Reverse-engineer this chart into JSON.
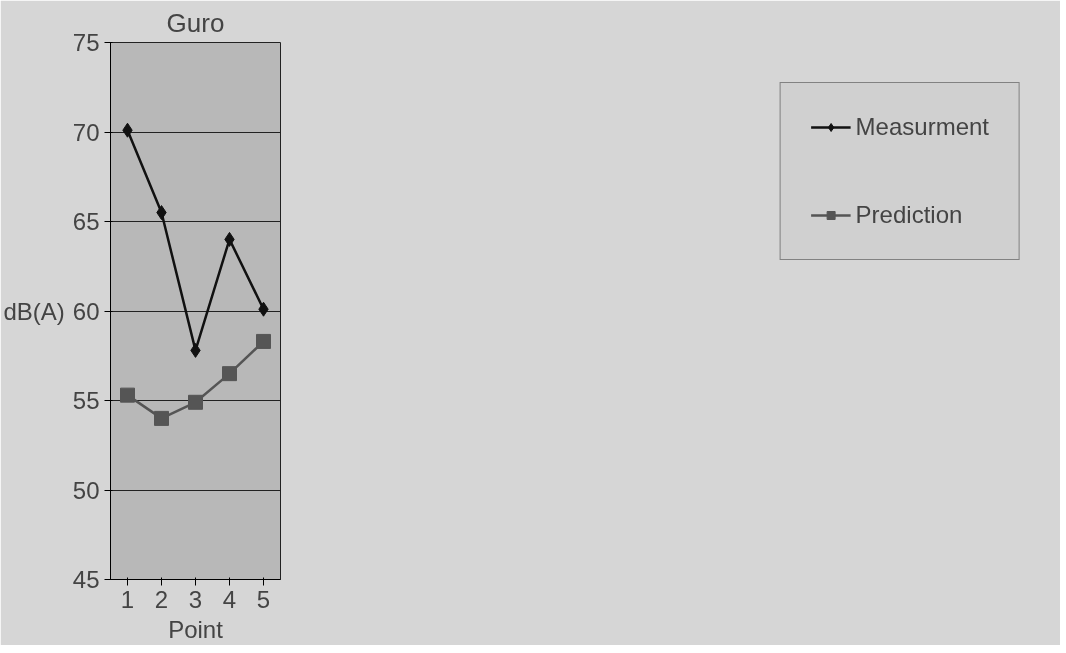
{
  "chart_data": {
    "type": "line",
    "title": "Guro",
    "xlabel": "Point",
    "ylabel": "dB(A)",
    "categories": [
      "1",
      "2",
      "3",
      "4",
      "5"
    ],
    "series": [
      {
        "name": "Measurment",
        "color": "#111111",
        "marker": "diamond",
        "values": [
          70.1,
          65.5,
          57.8,
          64.0,
          60.1
        ]
      },
      {
        "name": "Prediction",
        "color": "#555555",
        "marker": "square",
        "values": [
          55.3,
          54.0,
          54.9,
          56.5,
          58.3
        ]
      }
    ],
    "ylim": [
      45,
      75
    ],
    "yticks": [
      45,
      50,
      55,
      60,
      65,
      70,
      75
    ],
    "grid": "y",
    "legend": "right",
    "line_style": "solid"
  }
}
